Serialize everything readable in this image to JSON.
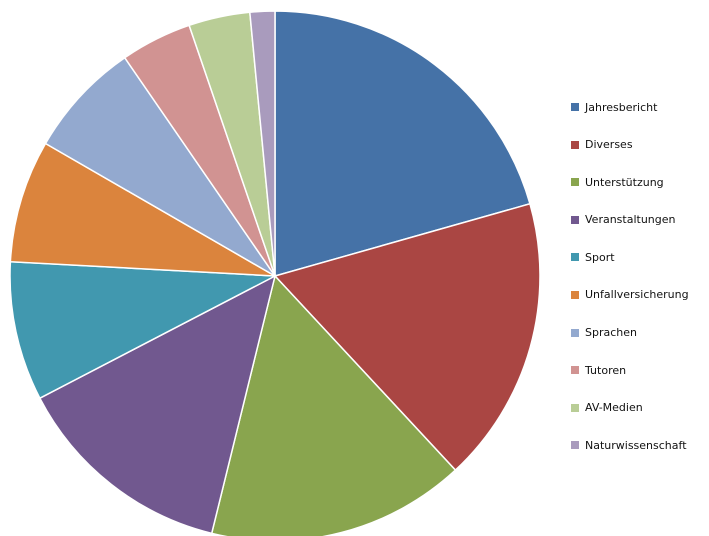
{
  "chart_data": {
    "type": "pie",
    "categories": [
      "Jahresbericht",
      "Diverses",
      "Unterstützung",
      "Veranstaltungen",
      "Sport",
      "Unfallversicherung",
      "Sprachen",
      "Tutoren",
      "AV-Medien",
      "Naturwissenschaft"
    ],
    "values": [
      20.4,
      17.3,
      15.6,
      13.4,
      8.4,
      7.4,
      7.0,
      4.3,
      3.7,
      1.5
    ],
    "colors": [
      "#4572A7",
      "#AA4643",
      "#89A54E",
      "#71588F",
      "#4198AF",
      "#DB843D",
      "#93A9CF",
      "#D19392",
      "#B9CD96",
      "#A99BBD"
    ],
    "start_angle_deg": 0,
    "direction": "clockwise",
    "legend_position": "right",
    "title": ""
  }
}
